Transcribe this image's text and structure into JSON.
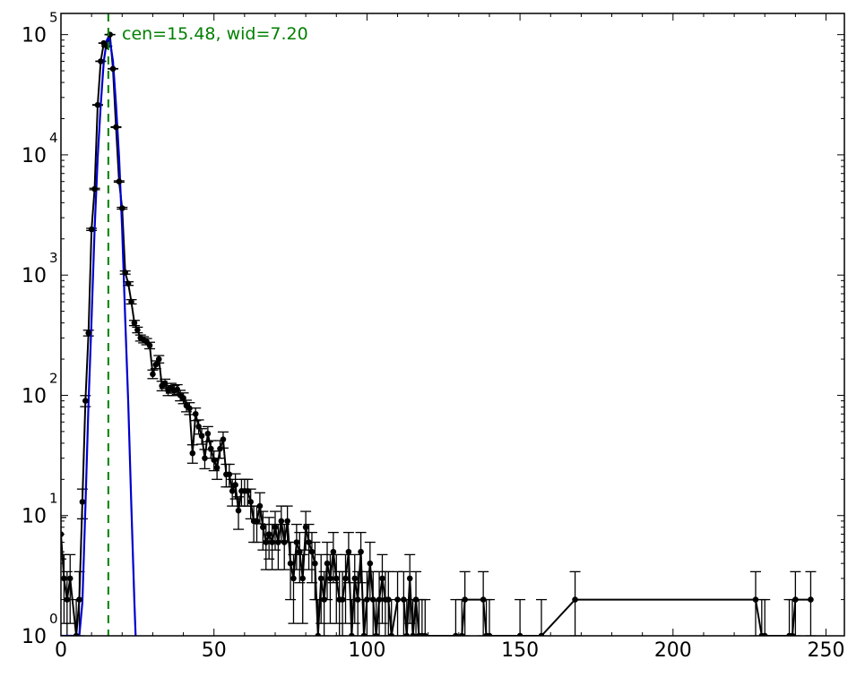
{
  "chart_data": {
    "type": "line",
    "title": "",
    "xlabel": "",
    "ylabel": "",
    "xlim": [
      0,
      256
    ],
    "ylim": [
      1,
      150000
    ],
    "yscale": "log",
    "grid": false,
    "legend": "none",
    "x_ticks": [
      0,
      50,
      100,
      150,
      200,
      250
    ],
    "x_tick_labels": [
      "0",
      "50",
      "100",
      "150",
      "200",
      "250"
    ],
    "y_ticks": [
      {
        "value": 1,
        "base": "10",
        "exp": "0"
      },
      {
        "value": 10,
        "base": "10",
        "exp": "1"
      },
      {
        "value": 100,
        "base": "10",
        "exp": "2"
      },
      {
        "value": 1000,
        "base": "10",
        "exp": "3"
      },
      {
        "value": 10000,
        "base": "10",
        "exp": "4"
      },
      {
        "value": 100000,
        "base": "10",
        "exp": "5"
      }
    ],
    "annotation": {
      "text": "cen=15.48, wid=7.20",
      "color": "#008000"
    },
    "center_line": {
      "x": 15.48,
      "color": "#008000"
    },
    "fit": {
      "color": "#0000cc",
      "x": [
        0,
        2,
        4,
        5,
        6,
        7,
        8,
        9,
        10,
        11,
        12,
        13,
        14,
        15,
        15.48,
        16,
        17,
        18,
        19,
        20,
        21,
        22,
        23,
        24,
        24.4
      ],
      "y": [
        1,
        1,
        1,
        1,
        1,
        1.9,
        12,
        85,
        430,
        2400,
        9500,
        26000,
        60000,
        90000,
        95000,
        90000,
        60000,
        26000,
        9500,
        2400,
        430,
        85,
        12,
        1.9,
        1
      ]
    },
    "data": {
      "color": "#000000",
      "points": [
        {
          "x": 0,
          "y": 7
        },
        {
          "x": 1,
          "y": 3
        },
        {
          "x": 2,
          "y": 2
        },
        {
          "x": 3,
          "y": 3
        },
        {
          "x": 5,
          "y": 1
        },
        {
          "x": 6,
          "y": 2
        },
        {
          "x": 7,
          "y": 13
        },
        {
          "x": 8,
          "y": 90
        },
        {
          "x": 9,
          "y": 330
        },
        {
          "x": 10,
          "y": 2400
        },
        {
          "x": 11,
          "y": 5200
        },
        {
          "x": 12,
          "y": 26000
        },
        {
          "x": 13,
          "y": 60000
        },
        {
          "x": 14,
          "y": 85000
        },
        {
          "x": 15,
          "y": 80000
        },
        {
          "x": 16,
          "y": 100000
        },
        {
          "x": 17,
          "y": 52000
        },
        {
          "x": 18,
          "y": 17000
        },
        {
          "x": 19,
          "y": 6000
        },
        {
          "x": 20,
          "y": 3600
        },
        {
          "x": 21,
          "y": 1050
        },
        {
          "x": 22,
          "y": 850
        },
        {
          "x": 23,
          "y": 600
        },
        {
          "x": 24,
          "y": 400
        },
        {
          "x": 25,
          "y": 350
        },
        {
          "x": 26,
          "y": 300
        },
        {
          "x": 27,
          "y": 290
        },
        {
          "x": 28,
          "y": 280
        },
        {
          "x": 29,
          "y": 260
        },
        {
          "x": 30,
          "y": 150
        },
        {
          "x": 31,
          "y": 180
        },
        {
          "x": 32,
          "y": 200
        },
        {
          "x": 33,
          "y": 120
        },
        {
          "x": 34,
          "y": 125
        },
        {
          "x": 35,
          "y": 110
        },
        {
          "x": 36,
          "y": 115
        },
        {
          "x": 37,
          "y": 110
        },
        {
          "x": 38,
          "y": 112
        },
        {
          "x": 39,
          "y": 100
        },
        {
          "x": 40,
          "y": 95
        },
        {
          "x": 41,
          "y": 82
        },
        {
          "x": 42,
          "y": 78
        },
        {
          "x": 43,
          "y": 33
        },
        {
          "x": 44,
          "y": 70
        },
        {
          "x": 45,
          "y": 55
        },
        {
          "x": 46,
          "y": 46
        },
        {
          "x": 47,
          "y": 30
        },
        {
          "x": 48,
          "y": 48
        },
        {
          "x": 49,
          "y": 36
        },
        {
          "x": 50,
          "y": 29
        },
        {
          "x": 51,
          "y": 25
        },
        {
          "x": 52,
          "y": 36
        },
        {
          "x": 53,
          "y": 43
        },
        {
          "x": 54,
          "y": 22
        },
        {
          "x": 55,
          "y": 22
        },
        {
          "x": 56,
          "y": 16
        },
        {
          "x": 57,
          "y": 18
        },
        {
          "x": 58,
          "y": 11
        },
        {
          "x": 59,
          "y": 16
        },
        {
          "x": 60,
          "y": 16
        },
        {
          "x": 61,
          "y": 16
        },
        {
          "x": 62,
          "y": 13
        },
        {
          "x": 63,
          "y": 9
        },
        {
          "x": 64,
          "y": 9
        },
        {
          "x": 65,
          "y": 12
        },
        {
          "x": 66,
          "y": 8
        },
        {
          "x": 67,
          "y": 6
        },
        {
          "x": 68,
          "y": 7
        },
        {
          "x": 69,
          "y": 6
        },
        {
          "x": 70,
          "y": 8
        },
        {
          "x": 71,
          "y": 6
        },
        {
          "x": 72,
          "y": 9
        },
        {
          "x": 73,
          "y": 6
        },
        {
          "x": 74,
          "y": 9
        },
        {
          "x": 75,
          "y": 4
        },
        {
          "x": 76,
          "y": 3
        },
        {
          "x": 77,
          "y": 6
        },
        {
          "x": 78,
          "y": 5
        },
        {
          "x": 79,
          "y": 3
        },
        {
          "x": 80,
          "y": 8
        },
        {
          "x": 81,
          "y": 6
        },
        {
          "x": 82,
          "y": 5
        },
        {
          "x": 83,
          "y": 4
        },
        {
          "x": 84,
          "y": 1
        },
        {
          "x": 85,
          "y": 3
        },
        {
          "x": 86,
          "y": 2
        },
        {
          "x": 87,
          "y": 4
        },
        {
          "x": 88,
          "y": 3
        },
        {
          "x": 89,
          "y": 5
        },
        {
          "x": 90,
          "y": 3
        },
        {
          "x": 91,
          "y": 2
        },
        {
          "x": 92,
          "y": 2
        },
        {
          "x": 93,
          "y": 3
        },
        {
          "x": 94,
          "y": 5
        },
        {
          "x": 95,
          "y": 1
        },
        {
          "x": 96,
          "y": 3
        },
        {
          "x": 97,
          "y": 2
        },
        {
          "x": 98,
          "y": 5
        },
        {
          "x": 99,
          "y": 1
        },
        {
          "x": 100,
          "y": 2
        },
        {
          "x": 101,
          "y": 4
        },
        {
          "x": 102,
          "y": 2
        },
        {
          "x": 103,
          "y": 1
        },
        {
          "x": 104,
          "y": 2
        },
        {
          "x": 105,
          "y": 3
        },
        {
          "x": 106,
          "y": 2
        },
        {
          "x": 107,
          "y": 2
        },
        {
          "x": 108,
          "y": 1
        },
        {
          "x": 110,
          "y": 2
        },
        {
          "x": 112,
          "y": 2
        },
        {
          "x": 113,
          "y": 1
        },
        {
          "x": 114,
          "y": 3
        },
        {
          "x": 115,
          "y": 1
        },
        {
          "x": 116,
          "y": 2
        },
        {
          "x": 117,
          "y": 1
        },
        {
          "x": 118,
          "y": 1
        },
        {
          "x": 119,
          "y": 1
        },
        {
          "x": 129,
          "y": 1
        },
        {
          "x": 131,
          "y": 1
        },
        {
          "x": 132,
          "y": 2
        },
        {
          "x": 138,
          "y": 2
        },
        {
          "x": 139,
          "y": 1
        },
        {
          "x": 140,
          "y": 1
        },
        {
          "x": 150,
          "y": 1
        },
        {
          "x": 157,
          "y": 1
        },
        {
          "x": 168,
          "y": 2
        },
        {
          "x": 227,
          "y": 2
        },
        {
          "x": 229,
          "y": 1
        },
        {
          "x": 230,
          "y": 1
        },
        {
          "x": 238,
          "y": 1
        },
        {
          "x": 239,
          "y": 1
        },
        {
          "x": 240,
          "y": 2
        },
        {
          "x": 245,
          "y": 2
        }
      ]
    }
  }
}
